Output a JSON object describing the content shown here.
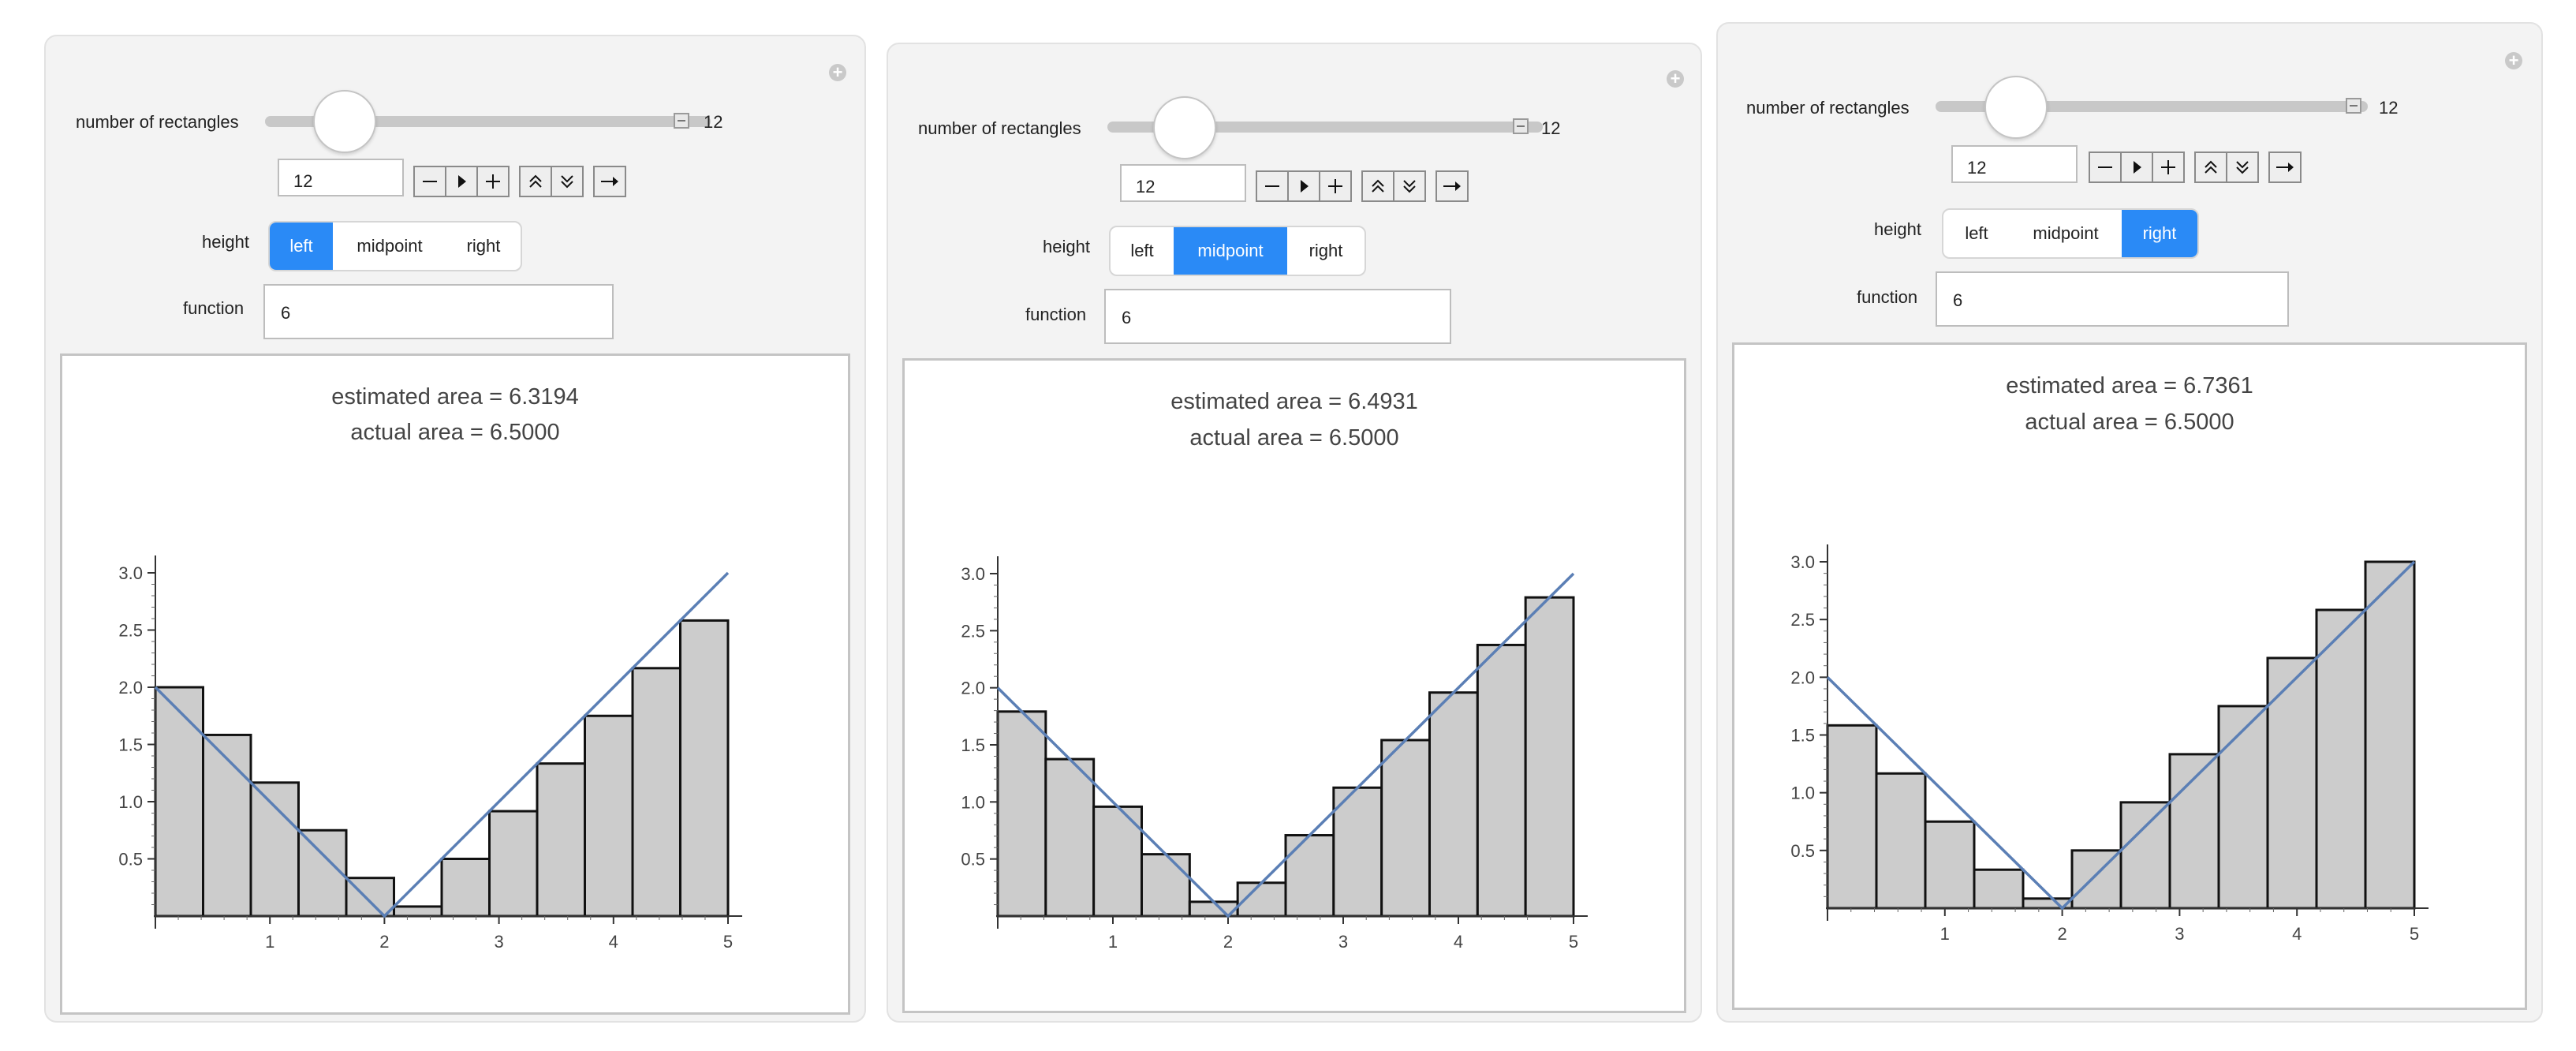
{
  "panels": [
    {
      "slider_label": "number of rectangles",
      "slider_value_text": "12",
      "input_value": "12",
      "height_label": "height",
      "height_options": [
        "left",
        "midpoint",
        "right"
      ],
      "selected": "left",
      "function_label": "function",
      "function_value": "6",
      "estimated_area_text": "estimated area = 6.3194",
      "actual_area_text": "actual area = 6.5000",
      "chart_data": {
        "type": "bar",
        "subtype": "riemann-sum",
        "n": 12,
        "x_range": [
          0,
          5
        ],
        "y_ticks": [
          "0.5",
          "1.0",
          "1.5",
          "2.0",
          "2.5",
          "3.0"
        ],
        "x_ticks": [
          "1",
          "2",
          "3",
          "4",
          "5"
        ],
        "curve": {
          "type": "line",
          "points": [
            [
              0,
              2
            ],
            [
              2,
              0
            ],
            [
              5,
              3
            ]
          ]
        },
        "rect_heights": [
          2.0,
          1.5833,
          1.1667,
          0.75,
          0.3333,
          0.0833,
          0.5,
          0.9167,
          1.3333,
          1.75,
          2.1667,
          2.5833
        ]
      }
    },
    {
      "slider_label": "number of rectangles",
      "slider_value_text": "12",
      "input_value": "12",
      "height_label": "height",
      "height_options": [
        "left",
        "midpoint",
        "right"
      ],
      "selected": "midpoint",
      "function_label": "function",
      "function_value": "6",
      "estimated_area_text": "estimated area = 6.4931",
      "actual_area_text": "actual area = 6.5000",
      "chart_data": {
        "type": "bar",
        "subtype": "riemann-sum",
        "n": 12,
        "x_range": [
          0,
          5
        ],
        "y_ticks": [
          "0.5",
          "1.0",
          "1.5",
          "2.0",
          "2.5",
          "3.0"
        ],
        "x_ticks": [
          "1",
          "2",
          "3",
          "4",
          "5"
        ],
        "curve": {
          "type": "line",
          "points": [
            [
              0,
              2
            ],
            [
              2,
              0
            ],
            [
              5,
              3
            ]
          ]
        },
        "rect_heights": [
          1.7917,
          1.375,
          0.9583,
          0.5417,
          0.125,
          0.2917,
          0.7083,
          1.125,
          1.5417,
          1.9583,
          2.375,
          2.7917
        ]
      }
    },
    {
      "slider_label": "number of rectangles",
      "slider_value_text": "12",
      "input_value": "12",
      "height_label": "height",
      "height_options": [
        "left",
        "midpoint",
        "right"
      ],
      "selected": "right",
      "function_label": "function",
      "function_value": "6",
      "estimated_area_text": "estimated area = 6.7361",
      "actual_area_text": "actual area = 6.5000",
      "chart_data": {
        "type": "bar",
        "subtype": "riemann-sum",
        "n": 12,
        "x_range": [
          0,
          5
        ],
        "y_ticks": [
          "0.5",
          "1.0",
          "1.5",
          "2.0",
          "2.5",
          "3.0"
        ],
        "x_ticks": [
          "1",
          "2",
          "3",
          "4",
          "5"
        ],
        "curve": {
          "type": "line",
          "points": [
            [
              0,
              2
            ],
            [
              2,
              0
            ],
            [
              5,
              3
            ]
          ]
        },
        "rect_heights": [
          1.5833,
          1.1667,
          0.75,
          0.3333,
          0.0833,
          0.5,
          0.9167,
          1.3333,
          1.75,
          2.1667,
          2.5833,
          3.0
        ]
      }
    }
  ],
  "colors": {
    "active_segment": "#2a8af6",
    "bar_fill": "#cccccc",
    "bar_stroke": "#111111",
    "curve": "#5b7fb5"
  }
}
